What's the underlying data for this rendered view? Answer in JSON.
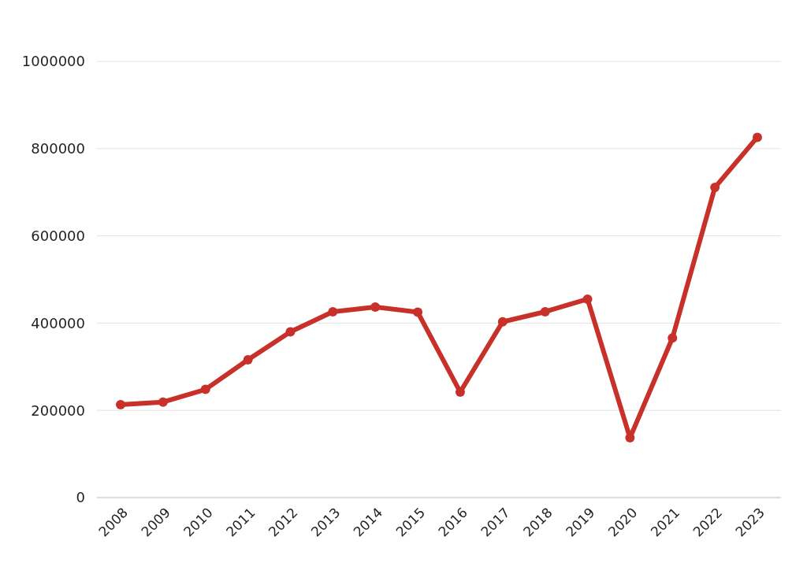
{
  "chart_data": {
    "type": "line",
    "categories": [
      "2008",
      "2009",
      "2010",
      "2011",
      "2012",
      "2013",
      "2014",
      "2015",
      "2016",
      "2017",
      "2018",
      "2019",
      "2020",
      "2021",
      "2022",
      "2023"
    ],
    "series": [
      {
        "color": "#c8302a",
        "values": [
          213000,
          219000,
          248000,
          316000,
          380000,
          426000,
          437000,
          425000,
          242000,
          403000,
          426000,
          455000,
          137000,
          366000,
          711000,
          826000
        ]
      }
    ],
    "ylim": [
      0,
      1000000
    ],
    "yticks": [
      0,
      200000,
      400000,
      600000,
      800000,
      1000000
    ],
    "grid": "y",
    "marker": "circle",
    "line_style": "solid"
  }
}
